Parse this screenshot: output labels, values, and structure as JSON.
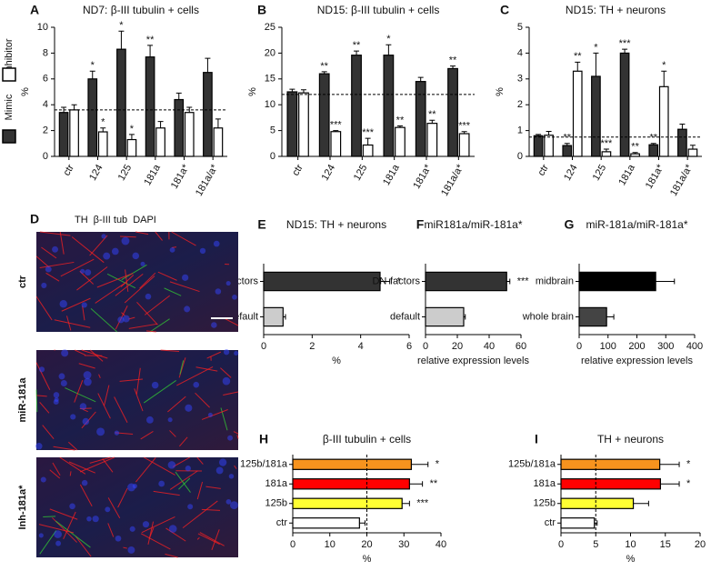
{
  "legend_title": null,
  "chart_data": [
    {
      "panel": "A",
      "type": "bar",
      "title": "ND7: β-III tubulin + cells",
      "ylabel": "%",
      "categories": [
        "ctr",
        "124",
        "125",
        "181a",
        "181a*",
        "181a/a*"
      ],
      "series": [
        {
          "name": "Mimic",
          "color": "#333333",
          "values": [
            3.4,
            6.0,
            8.3,
            7.7,
            4.4,
            6.5
          ],
          "errors": [
            0.4,
            0.6,
            1.4,
            0.9,
            0.5,
            1.1
          ],
          "sig": [
            null,
            "*",
            "*",
            "**",
            null,
            null
          ]
        },
        {
          "name": "Inhibitor",
          "color": "#ffffff",
          "values": [
            3.6,
            1.9,
            1.3,
            2.2,
            3.4,
            2.2
          ],
          "errors": [
            0.4,
            0.3,
            0.4,
            0.5,
            0.4,
            0.7
          ],
          "sig": [
            null,
            "*",
            "*",
            null,
            null,
            null
          ]
        }
      ],
      "ylim": [
        0,
        10
      ],
      "yticks": [
        0,
        2,
        4,
        6,
        8,
        10
      ],
      "ref_line": 3.6
    },
    {
      "panel": "B",
      "type": "bar",
      "title": "ND15: β-III tubulin + cells",
      "ylabel": "%",
      "categories": [
        "ctr",
        "124",
        "125",
        "181a",
        "181a*",
        "181a/a*"
      ],
      "series": [
        {
          "name": "Mimic",
          "color": "#333333",
          "values": [
            12.5,
            16,
            19.6,
            19.6,
            14.5,
            17
          ],
          "errors": [
            0.5,
            0.4,
            0.8,
            2,
            0.8,
            0.5
          ],
          "sig": [
            null,
            "**",
            "**",
            "*",
            null,
            "**"
          ]
        },
        {
          "name": "Inhibitor",
          "color": "#ffffff",
          "values": [
            12.3,
            4.8,
            2.2,
            5.6,
            6.4,
            4.4
          ],
          "errors": [
            0.6,
            0.2,
            1.3,
            0.3,
            0.6,
            0.4
          ],
          "sig": [
            null,
            "***",
            "***",
            "**",
            "**",
            "***"
          ]
        }
      ],
      "ylim": [
        0,
        25
      ],
      "yticks": [
        0,
        5,
        10,
        15,
        20,
        25
      ],
      "ref_line": 12
    },
    {
      "panel": "C",
      "type": "bar",
      "title": "ND15: TH + neurons",
      "ylabel": "%",
      "categories": [
        "ctr",
        "124",
        "125",
        "181a",
        "181a*",
        "181a/a*"
      ],
      "series": [
        {
          "name": "Mimic",
          "color": "#333333",
          "values": [
            0.8,
            0.42,
            3.1,
            4.0,
            0.45,
            1.05
          ],
          "errors": [
            0.05,
            0.08,
            0.9,
            0.15,
            0.05,
            0.2
          ],
          "sig": [
            null,
            "**",
            "*",
            "***",
            "**",
            null
          ]
        },
        {
          "name": "Inhibitor",
          "color": "#ffffff",
          "values": [
            0.82,
            3.3,
            0.18,
            0.1,
            2.7,
            0.28
          ],
          "errors": [
            0.15,
            0.35,
            0.1,
            0.05,
            0.6,
            0.15
          ],
          "sig": [
            null,
            "**",
            "***",
            "**",
            "*",
            null
          ]
        }
      ],
      "ylim": [
        0,
        5
      ],
      "yticks": [
        0,
        1,
        2,
        3,
        4,
        5
      ],
      "ref_line": 0.75
    },
    {
      "panel": "E",
      "type": "barh",
      "title": "ND15: TH + neurons",
      "xlabel": "%",
      "categories": [
        "DN-factors",
        "default"
      ],
      "values": [
        4.8,
        0.8
      ],
      "errors": [
        0.4,
        0.1
      ],
      "sig": [
        "*",
        null
      ],
      "colors": [
        "#333333",
        "#cccccc"
      ],
      "xlim": [
        0,
        6
      ],
      "xticks": [
        0,
        2,
        4,
        6
      ],
      "ref_line": null
    },
    {
      "panel": "F",
      "type": "barh",
      "title": "miR181a/miR-181a*",
      "xlabel": "relative expression levels",
      "categories": [
        "DN-factors",
        "default"
      ],
      "values": [
        51,
        24
      ],
      "errors": [
        2,
        1
      ],
      "sig": [
        "***",
        null
      ],
      "colors": [
        "#333333",
        "#cccccc"
      ],
      "xlim": [
        0,
        60
      ],
      "xticks": [
        0,
        20,
        40,
        60
      ],
      "ref_line": null
    },
    {
      "panel": "G",
      "type": "barh",
      "title": "miR-181a/miR-181a*",
      "xlabel": "relative expression levels",
      "categories": [
        "midbrain",
        "whole brain"
      ],
      "values": [
        265,
        95
      ],
      "errors": [
        65,
        25
      ],
      "sig": [
        null,
        null
      ],
      "colors": [
        "#000000",
        "#444444"
      ],
      "xlim": [
        0,
        400
      ],
      "xticks": [
        0,
        100,
        200,
        300,
        400
      ],
      "ref_line": null
    },
    {
      "panel": "H",
      "type": "barh",
      "title": "β-III tubulin + cells",
      "xlabel": "%",
      "categories": [
        "125b/181a",
        "181a",
        "125b",
        "ctr"
      ],
      "values": [
        32,
        31.5,
        29.5,
        18
      ],
      "errors": [
        4.5,
        3.5,
        2,
        1.5
      ],
      "sig": [
        "*",
        "**",
        "***",
        null
      ],
      "colors": [
        "#f7931e",
        "#ff0000",
        "#ffff33",
        "#ffffff"
      ],
      "xlim": [
        0,
        40
      ],
      "xticks": [
        0,
        10,
        20,
        30,
        40
      ],
      "ref_line": 20
    },
    {
      "panel": "I",
      "type": "barh",
      "title": "TH + neurons",
      "xlabel": "%",
      "categories": [
        "125b/181a",
        "181a",
        "125b",
        "ctr"
      ],
      "values": [
        14.2,
        14.3,
        10.4,
        4.8
      ],
      "errors": [
        2.8,
        2.7,
        2.2,
        0.4
      ],
      "sig": [
        "*",
        "*",
        null,
        null
      ],
      "colors": [
        "#f7931e",
        "#ff0000",
        "#ffff33",
        "#ffffff"
      ],
      "xlim": [
        0,
        20
      ],
      "xticks": [
        0,
        5,
        10,
        15,
        20
      ],
      "ref_line": 5
    }
  ],
  "image_panel": {
    "panel": "D",
    "channels": [
      {
        "label": "TH",
        "color": "#33cc33"
      },
      {
        "label": "β-III tub",
        "color": "#ff2020"
      },
      {
        "label": "DAPI",
        "color": "#3344ff"
      }
    ],
    "rows": [
      "ctr",
      "miR-181a",
      "Inh-181a*"
    ]
  }
}
